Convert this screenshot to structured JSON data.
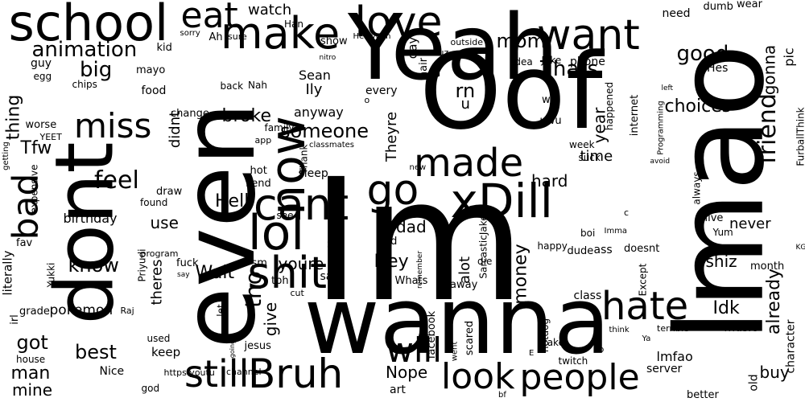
{
  "words": [
    "Im",
    "lmao",
    "Yeah",
    "Oof",
    "wanna",
    "even",
    "dont",
    "school",
    "eat",
    "make",
    "love",
    "lol",
    "cant",
    "xDill",
    "shit",
    "hate",
    "go",
    "made",
    "now",
    "still",
    "Bruh",
    "will",
    "look",
    "want",
    "people",
    "bad",
    "miss",
    "animation",
    "friend",
    "good",
    "mom",
    "Thats",
    "someone",
    "feel",
    "know",
    "best",
    "got",
    "man",
    "mine",
    "rn",
    "u",
    "tho",
    "Hey",
    "dad",
    "big",
    "thing",
    "broke",
    "Hell",
    "Wait",
    "youre",
    "choices",
    "Idk",
    "already",
    "Nope",
    "money",
    "buy",
    "shiz",
    "yall",
    "Tfw",
    "watch",
    "hard",
    "time",
    "year",
    "alot",
    "give",
    "never",
    "pokemon",
    "use",
    "birthday",
    "keep",
    "Theyre",
    "gonna",
    "pic",
    "Hes",
    "lmfao",
    "music",
    "didnt",
    "theres",
    "Ily",
    "Sean",
    "anyway",
    "literally",
    "need",
    "dumb",
    "wear",
    "sorry",
    "Ah",
    "sure",
    "kid",
    "Han",
    "mayo",
    "food",
    "back",
    "Nah",
    "change",
    "chips",
    "guy",
    "egg",
    "worse",
    "YEET",
    "family",
    "app",
    "hot",
    "send",
    "Thank",
    "sleep",
    "see",
    "fuck",
    "draw",
    "found",
    "expensive",
    "program",
    "fav",
    "Priyudi",
    "Yukki",
    "grade",
    "Raj",
    "sm",
    "tbh",
    "saw",
    "cut",
    "let",
    "jesus",
    "used",
    "house",
    "god",
    "Nice",
    "https youtu",
    "channel",
    "art",
    "facebook",
    "went",
    "scared",
    "hotdog",
    "take",
    "twitch",
    "fb",
    "think",
    "server",
    "better",
    "old",
    "character",
    "terrible",
    "Ya",
    "christian",
    "class",
    "dude",
    "ass",
    "doesnt",
    "Except",
    "month",
    "live",
    "Yum",
    "always",
    "avoid",
    "Programming",
    "FurballThink",
    "internet",
    "happened",
    "suck",
    "week",
    "uwu",
    "wtf",
    "phone",
    "idea",
    "Jake",
    "cuz",
    "outside",
    "day",
    "hair",
    "show",
    "Hell yeah",
    "nitro",
    "o",
    "every",
    "classmates",
    "remember",
    "Whats",
    "away",
    "die",
    "ik",
    "told",
    "SarcasticJake",
    "happy",
    "boi",
    "Imma",
    "c",
    "KG",
    "left",
    "getting",
    "irl",
    "say",
    "new",
    "E",
    "bf",
    "going"
  ]
}
